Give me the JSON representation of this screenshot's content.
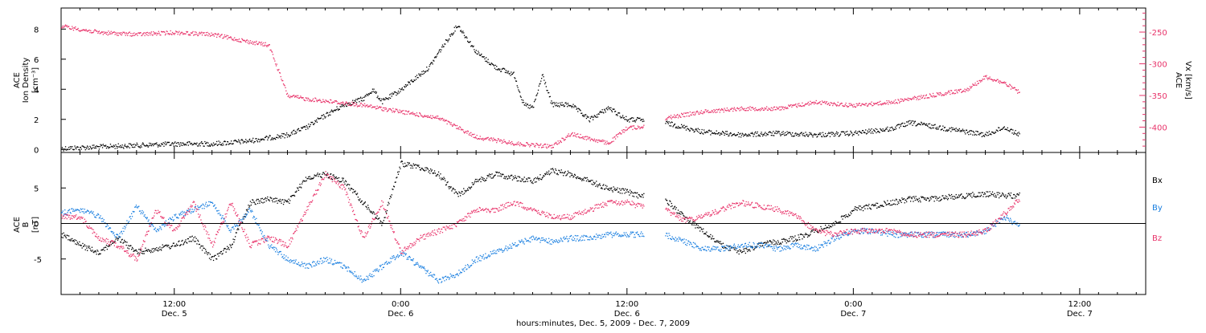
{
  "colors": {
    "black": "#000000",
    "blue": "#1a7fe0",
    "red": "#e8336a"
  },
  "x_axis": {
    "title": "hours:minutes, Dec.  5, 2009 - Dec.  7, 2009",
    "range_hours": [
      6.0,
      63.5
    ],
    "ticks": [
      {
        "hour": 12,
        "time": "12:00",
        "date": "Dec. 5"
      },
      {
        "hour": 24,
        "time": "0:00",
        "date": "Dec. 6"
      },
      {
        "hour": 36,
        "time": "12:00",
        "date": "Dec. 6"
      },
      {
        "hour": 48,
        "time": "0:00",
        "date": "Dec. 7"
      },
      {
        "hour": 60,
        "time": "12:00",
        "date": "Dec. 7"
      }
    ]
  },
  "chart_data": [
    {
      "type": "scatter",
      "panel": "top",
      "ylabel_left": [
        "ACE",
        "Ion Density",
        "[cm⁻³]"
      ],
      "ylabel_right": [
        "ACE",
        "Vx [km/s]"
      ],
      "ylim_left": [
        -0.2,
        9.4
      ],
      "yticks_left": [
        0,
        2,
        4,
        6,
        8
      ],
      "ylim_right": [
        -440,
        -212
      ],
      "yticks_right": [
        -250,
        -300,
        -350,
        -400
      ],
      "series": [
        {
          "axis": "left",
          "color": "black",
          "points": [
            [
              6.0,
              0.1
            ],
            [
              8,
              0.2
            ],
            [
              10,
              0.3
            ],
            [
              12,
              0.4
            ],
            [
              14,
              0.4
            ],
            [
              16,
              0.6
            ],
            [
              18,
              1.0
            ],
            [
              19,
              1.5
            ],
            [
              20,
              2.3
            ],
            [
              21,
              3.0
            ],
            [
              22,
              3.4
            ],
            [
              22.5,
              4.0
            ],
            [
              23,
              3.2
            ],
            [
              24,
              4.0
            ],
            [
              25,
              5.0
            ],
            [
              25.5,
              5.5
            ],
            [
              26,
              6.5
            ],
            [
              27,
              8.3
            ],
            [
              28,
              6.5
            ],
            [
              29,
              5.5
            ],
            [
              30,
              5.0
            ],
            [
              30.5,
              3.0
            ],
            [
              31,
              2.8
            ],
            [
              31.5,
              5.0
            ],
            [
              32,
              3.0
            ],
            [
              33,
              3.0
            ],
            [
              34,
              2.0
            ],
            [
              35,
              2.8
            ],
            [
              36,
              2.0
            ],
            [
              36.6,
              2.0
            ],
            [
              38,
              1.8
            ],
            [
              39,
              1.5
            ],
            [
              40,
              1.2
            ],
            [
              42,
              1.0
            ],
            [
              44,
              1.1
            ],
            [
              46,
              1.0
            ],
            [
              48,
              1.1
            ],
            [
              50,
              1.4
            ],
            [
              51,
              1.8
            ],
            [
              52,
              1.6
            ],
            [
              54,
              1.2
            ],
            [
              55,
              1.0
            ],
            [
              56,
              1.5
            ],
            [
              56.8,
              1.0
            ]
          ],
          "gaps": [
            [
              36.9,
              38.0
            ]
          ]
        },
        {
          "axis": "right",
          "color": "red",
          "points": [
            [
              6.0,
              -240
            ],
            [
              8,
              -250
            ],
            [
              10,
              -253
            ],
            [
              12,
              -250
            ],
            [
              14,
              -253
            ],
            [
              16,
              -265
            ],
            [
              17,
              -270
            ],
            [
              18,
              -350
            ],
            [
              19,
              -355
            ],
            [
              20,
              -358
            ],
            [
              22,
              -365
            ],
            [
              24,
              -375
            ],
            [
              26,
              -385
            ],
            [
              28,
              -415
            ],
            [
              30,
              -425
            ],
            [
              32,
              -430
            ],
            [
              33,
              -410
            ],
            [
              35,
              -425
            ],
            [
              36,
              -400
            ],
            [
              36.6,
              -400
            ],
            [
              38,
              -385
            ],
            [
              40,
              -375
            ],
            [
              42,
              -370
            ],
            [
              44,
              -370
            ],
            [
              46,
              -360
            ],
            [
              48,
              -365
            ],
            [
              50,
              -360
            ],
            [
              52,
              -350
            ],
            [
              54,
              -340
            ],
            [
              55,
              -320
            ],
            [
              56,
              -330
            ],
            [
              56.8,
              -345
            ]
          ],
          "gaps": [
            [
              36.9,
              38.0
            ]
          ]
        }
      ]
    },
    {
      "type": "scatter",
      "panel": "bottom",
      "ylabel": [
        "ACE",
        "B",
        "[nT]"
      ],
      "ylim": [
        -10,
        10
      ],
      "yticks": [
        -5,
        0,
        5
      ],
      "zero_line": true,
      "legend": [
        {
          "label": "Bx",
          "color": "black"
        },
        {
          "label": "By",
          "color": "blue"
        },
        {
          "label": "Bz",
          "color": "red"
        }
      ],
      "series": [
        {
          "name": "Bx",
          "color": "black",
          "points": [
            [
              6.0,
              -1.5
            ],
            [
              7,
              -3
            ],
            [
              8,
              -4
            ],
            [
              9,
              -2
            ],
            [
              10,
              -4
            ],
            [
              11,
              -3.5
            ],
            [
              12,
              -3
            ],
            [
              13,
              -2
            ],
            [
              14,
              -5
            ],
            [
              15,
              -3
            ],
            [
              16,
              3
            ],
            [
              17,
              3.5
            ],
            [
              18,
              3
            ],
            [
              19,
              6.5
            ],
            [
              20,
              7
            ],
            [
              21,
              6
            ],
            [
              22,
              3
            ],
            [
              23,
              0
            ],
            [
              24,
              8.5
            ],
            [
              25,
              8
            ],
            [
              26,
              7
            ],
            [
              27,
              4
            ],
            [
              28,
              6
            ],
            [
              29,
              7
            ],
            [
              30,
              6.5
            ],
            [
              31,
              6
            ],
            [
              32,
              7.5
            ],
            [
              33,
              7
            ],
            [
              34,
              6
            ],
            [
              35,
              5
            ],
            [
              36,
              4.5
            ],
            [
              36.6,
              4
            ],
            [
              38,
              3.5
            ],
            [
              39,
              1
            ],
            [
              40,
              -1
            ],
            [
              41,
              -3
            ],
            [
              42,
              -4
            ],
            [
              43,
              -3
            ],
            [
              44,
              -2.5
            ],
            [
              45,
              -2
            ],
            [
              46,
              -1
            ],
            [
              47,
              0
            ],
            [
              48,
              2
            ],
            [
              49,
              2.5
            ],
            [
              50,
              3
            ],
            [
              51,
              3.5
            ],
            [
              52,
              3.5
            ],
            [
              54,
              4
            ],
            [
              55,
              4.2
            ],
            [
              56,
              4
            ],
            [
              56.8,
              4
            ]
          ],
          "gaps": [
            [
              36.9,
              38.0
            ]
          ]
        },
        {
          "name": "By",
          "color": "blue",
          "points": [
            [
              6.0,
              1.5
            ],
            [
              7,
              2
            ],
            [
              8,
              1
            ],
            [
              9,
              -2
            ],
            [
              10,
              2.5
            ],
            [
              11,
              -1
            ],
            [
              12,
              1
            ],
            [
              13,
              2
            ],
            [
              14,
              3
            ],
            [
              15,
              -1
            ],
            [
              16,
              2
            ],
            [
              17,
              -3
            ],
            [
              18,
              -5
            ],
            [
              19,
              -6
            ],
            [
              20,
              -5
            ],
            [
              21,
              -6
            ],
            [
              22,
              -8
            ],
            [
              23,
              -6
            ],
            [
              24,
              -4
            ],
            [
              25,
              -6
            ],
            [
              26,
              -8
            ],
            [
              27,
              -7
            ],
            [
              28,
              -5
            ],
            [
              29,
              -4
            ],
            [
              30,
              -3
            ],
            [
              31,
              -2
            ],
            [
              32,
              -2.5
            ],
            [
              33,
              -2
            ],
            [
              34,
              -2
            ],
            [
              35,
              -1.5
            ],
            [
              36,
              -1.5
            ],
            [
              36.6,
              -1.5
            ],
            [
              38,
              -1.5
            ],
            [
              39,
              -2.5
            ],
            [
              40,
              -3.5
            ],
            [
              41,
              -3.5
            ],
            [
              42,
              -3
            ],
            [
              43,
              -3
            ],
            [
              44,
              -3.5
            ],
            [
              45,
              -3
            ],
            [
              46,
              -3.5
            ],
            [
              47,
              -2
            ],
            [
              48,
              -1
            ],
            [
              49,
              -1
            ],
            [
              50,
              -1.5
            ],
            [
              52,
              -1.5
            ],
            [
              54,
              -1.5
            ],
            [
              55,
              -1
            ],
            [
              56,
              1
            ],
            [
              56.8,
              -0.5
            ]
          ],
          "gaps": [
            [
              36.9,
              38.0
            ]
          ]
        },
        {
          "name": "Bz",
          "color": "red",
          "points": [
            [
              6.0,
              1
            ],
            [
              7,
              1
            ],
            [
              8,
              -2
            ],
            [
              9,
              -3
            ],
            [
              10,
              -5
            ],
            [
              11,
              2
            ],
            [
              12,
              -1
            ],
            [
              13,
              3
            ],
            [
              14,
              -3
            ],
            [
              15,
              3
            ],
            [
              16,
              -3
            ],
            [
              17,
              -2
            ],
            [
              18,
              -3
            ],
            [
              19,
              2
            ],
            [
              20,
              7
            ],
            [
              21,
              5
            ],
            [
              22,
              -2
            ],
            [
              23,
              3
            ],
            [
              24,
              -4
            ],
            [
              25,
              -2
            ],
            [
              26,
              -1
            ],
            [
              27,
              0
            ],
            [
              28,
              2
            ],
            [
              29,
              2
            ],
            [
              30,
              3
            ],
            [
              31,
              2
            ],
            [
              32,
              1
            ],
            [
              33,
              1
            ],
            [
              34,
              2
            ],
            [
              35,
              3
            ],
            [
              36,
              3
            ],
            [
              36.6,
              2.5
            ],
            [
              38,
              2
            ],
            [
              39,
              0.5
            ],
            [
              40,
              1
            ],
            [
              41,
              2
            ],
            [
              42,
              3
            ],
            [
              43,
              2.5
            ],
            [
              44,
              2
            ],
            [
              45,
              1
            ],
            [
              46,
              -1
            ],
            [
              47,
              -1.5
            ],
            [
              48,
              -1
            ],
            [
              49,
              -1
            ],
            [
              50,
              -1
            ],
            [
              51,
              -1.5
            ],
            [
              52,
              -1.5
            ],
            [
              54,
              -1.5
            ],
            [
              55,
              -1
            ],
            [
              56,
              1.5
            ],
            [
              56.8,
              3.5
            ]
          ],
          "gaps": [
            [
              36.9,
              38.0
            ]
          ]
        }
      ]
    }
  ]
}
